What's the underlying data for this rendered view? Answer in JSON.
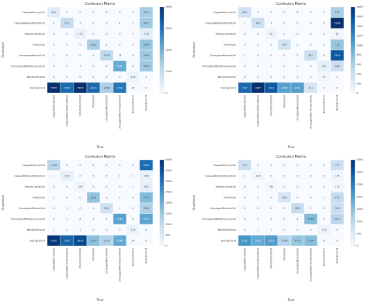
{
  "colors": {
    "low": "#f7fbff",
    "high": "#08306b",
    "grid": "#ffffff",
    "dark_text": "#444444",
    "light_text": "#ffffff"
  },
  "chart_data": [
    {
      "type": "heatmap",
      "title": "Confusion Matrix",
      "xlabel": "True",
      "ylabel": "Predicted",
      "rows": [
        "CappedHoneyCell",
        "CappedWorkerBroodCell",
        "EmptyCombCell",
        "PollenCell",
        "UncappedNectarCell",
        "UncappedWorkerLarvaCell",
        "BeehiveFrame",
        "Background"
      ],
      "cols": [
        "CappedHoneyCell",
        "CappedWorkerBroodCell",
        "EmptyCombCell",
        "PollenCell",
        "UncappedNectarCell",
        "UncappedWorkerLarvaCell",
        "BeehiveFrame",
        "Background"
      ],
      "values": [
        [
          456,
          2,
          0,
          0,
          6,
          0,
          0,
          1412
        ],
        [
          4,
          971,
          3,
          0,
          0,
          4,
          1,
          1472
        ],
        [
          0,
          0,
          274,
          0,
          0,
          0,
          1,
          378
        ],
        [
          0,
          0,
          0,
          1350,
          2,
          0,
          0,
          1580
        ],
        [
          1,
          0,
          0,
          4,
          1100,
          11,
          0,
          1490
        ],
        [
          0,
          2,
          7,
          0,
          6,
          2061,
          0,
          1493
        ],
        [
          0,
          2,
          0,
          0,
          0,
          0,
          246,
          2
        ],
        [
          4649,
          3096,
          4606,
          3120,
          1368,
          2933,
          39,
          0
        ]
      ],
      "vmax": 4000,
      "colorbar_ticks": [
        0,
        1000,
        2000,
        3000,
        4000
      ]
    },
    {
      "type": "heatmap",
      "title": "Confusion Matrix",
      "xlabel": "True",
      "ylabel": "Predicted",
      "rows": [
        "CappedHoneyCell",
        "CappedWorkerBroodCell",
        "EmptyCombCell",
        "PollenCell",
        "UncappedNectarCell",
        "UncappedWorkerLarvaCell",
        "BeehiveFrame",
        "Background"
      ],
      "cols": [
        "CappedHoneyCell",
        "CappedWorkerBroodCell",
        "EmptyCombCell",
        "PollenCell",
        "UncappedNectarCell",
        "UncappedWorkerLarvaCell",
        "BeehiveFrame",
        "Background"
      ],
      "values": [
        [
          364,
          0,
          0,
          0,
          6,
          0,
          0,
          611
        ],
        [
          1,
          381,
          3,
          0,
          0,
          0,
          0,
          1936
        ],
        [
          0,
          0,
          91,
          0,
          0,
          0,
          0,
          52
        ],
        [
          0,
          3,
          0,
          344,
          0,
          0,
          0,
          715
        ],
        [
          1,
          0,
          0,
          0,
          2,
          381,
          0,
          1524
        ],
        [
          0,
          0,
          1,
          0,
          0,
          0,
          161,
          388
        ],
        [
          0,
          0,
          0,
          0,
          0,
          0,
          71,
          4
        ],
        [
          1417,
          1884,
          1521,
          1005,
          1031,
          311,
          0,
          0
        ]
      ],
      "vmax": 1800,
      "colorbar_ticks": [
        0,
        200,
        400,
        600,
        800,
        1000,
        1200,
        1400,
        1600,
        1800
      ]
    },
    {
      "type": "heatmap",
      "title": "Confusion Matrix",
      "xlabel": "True",
      "ylabel": "Predicted",
      "rows": [
        "CappedHoneyCell",
        "CappedWorkerBroodCell",
        "EmptyCombCell",
        "PollenCell",
        "UncappedNectarCell",
        "UncappedWorkerLarvaCell",
        "BeehiveFrame",
        "Background"
      ],
      "cols": [
        "CappedHoneyCell",
        "CappedWorkerBroodCell",
        "EmptyCombCell",
        "PollenCell",
        "UncappedNectarCell",
        "UncappedWorkerLarvaCell",
        "BeehiveFrame",
        "Background"
      ],
      "values": [
        [
          1158,
          0,
          0,
          0,
          0,
          0,
          0,
          3083
        ],
        [
          1,
          373,
          0,
          0,
          0,
          1,
          1,
          286
        ],
        [
          0,
          0,
          180,
          0,
          0,
          0,
          1,
          360
        ],
        [
          1,
          0,
          0,
          1611,
          3,
          2,
          0,
          1770
        ],
        [
          0,
          2,
          0,
          1,
          806,
          1,
          0,
          1282
        ],
        [
          0,
          1,
          6,
          1,
          1,
          2210,
          0,
          2170
        ],
        [
          1,
          2,
          1,
          0,
          0,
          0,
          226,
          8
        ],
        [
          3922,
          3197,
          3616,
          1700,
          1250,
          2084,
          14,
          0
        ]
      ],
      "vmax": 4000,
      "colorbar_ticks": [
        0,
        500,
        1000,
        1500,
        2000,
        2500,
        3000,
        3500,
        4000
      ]
    },
    {
      "type": "heatmap",
      "title": "Confusion Matrix",
      "xlabel": "True",
      "ylabel": "Predicted",
      "rows": [
        "CappedHoneyCell",
        "CappedWorkerBroodCell",
        "EmptyCombCell",
        "PollenCell",
        "UncappedNectarCell",
        "UncappedWorkerLarvaCell",
        "BeehiveFrame",
        "Background"
      ],
      "cols": [
        "CappedHoneyCell",
        "CappedWorkerBroodCell",
        "EmptyCombCell",
        "PollenCell",
        "UncappedNectarCell",
        "UncappedWorkerLarvaCell",
        "BeehiveFrame",
        "Background"
      ],
      "values": [
        [
          743,
          4,
          0,
          0,
          0,
          0,
          0,
          757
        ],
        [
          1,
          128,
          0,
          0,
          0,
          0,
          0,
          135
        ],
        [
          0,
          0,
          98,
          0,
          0,
          0,
          0,
          110
        ],
        [
          0,
          2,
          0,
          604,
          0,
          0,
          1,
          870
        ],
        [
          0,
          0,
          0,
          0,
          880,
          3,
          0,
          784
        ],
        [
          0,
          0,
          4,
          0,
          4,
          1554,
          0,
          1011
        ],
        [
          0,
          1,
          1,
          0,
          0,
          0,
          178,
          0
        ],
        [
          2131,
          1818,
          2023,
          1036,
          1372,
          1504,
          8,
          0
        ]
      ],
      "vmax": 3500,
      "colorbar_ticks": [
        0,
        500,
        1000,
        1500,
        2000,
        2500,
        3000,
        3500
      ]
    }
  ]
}
